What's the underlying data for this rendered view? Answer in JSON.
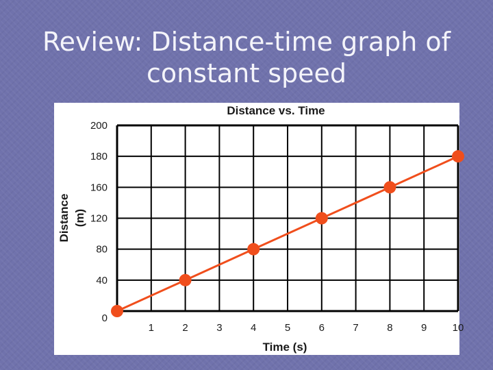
{
  "slide": {
    "title_line1": "Review: Distance-time graph of",
    "title_line2": "constant speed"
  },
  "colors": {
    "background": "#7072ac",
    "series": "#f04e1c",
    "grid": "#000000"
  },
  "chart_data": {
    "type": "line",
    "title": "Distance vs. Time",
    "xlabel": "Time (s)",
    "ylabel": "Distance (m)",
    "ylabel_lines": [
      "Distance",
      "(m)"
    ],
    "x_ticks": [
      "1",
      "2",
      "3",
      "4",
      "5",
      "6",
      "7",
      "8",
      "9",
      "10"
    ],
    "y_ticks": [
      "0",
      "40",
      "80",
      "120",
      "160",
      "180",
      "200"
    ],
    "grid": true,
    "series": [
      {
        "x": [
          0,
          2,
          4,
          6,
          8,
          10
        ],
        "y": [
          0,
          40,
          80,
          120,
          160,
          180
        ]
      }
    ]
  }
}
